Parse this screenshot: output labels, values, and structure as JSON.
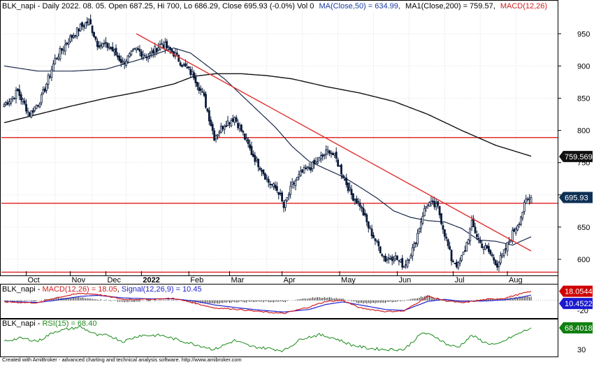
{
  "chart_title": {
    "prefix": "BLK_napi - Daily 2022. 08. 05. Open 687.25, Hi 700, Lo 686.29, Close 695.93 (-0.0%) Vol 0",
    "ma50": "MA(Close,50) = 634.99,",
    "ma200": "MA1(Close,200) = 759.57,",
    "macd": "MACD(12,26)"
  },
  "footer": "Created with AmiBroker - advanced charting and technical analysis software. http://www.amibroker.com",
  "colors": {
    "candle": "#0a1a3a",
    "ma50": "#1b2a4a",
    "ma200": "#111111",
    "trend": "#e03030",
    "macd": "#d02020",
    "signal": "#2020d0",
    "hist": "#1a1a1a",
    "rsi": "#1a8a1a",
    "price_badge": "#0d2f55",
    "ma200_badge": "#111111",
    "macd_badge": "#d00000",
    "signal_badge": "#1a1ad0",
    "rsi_badge": "#108010"
  },
  "x_axis": {
    "labels": [
      "Oct",
      "Nov",
      "Dec",
      "2022",
      "Feb",
      "Mar",
      "Apr",
      "May",
      "Jun",
      "Jul",
      "Aug"
    ]
  },
  "chart_data": [
    {
      "type": "candlestick",
      "title": "BLK_napi - Daily",
      "ylim": [
        575,
        985
      ],
      "y_ticks": [
        600,
        650,
        700,
        750,
        800,
        850,
        900,
        950
      ],
      "last": {
        "open": 687.25,
        "high": 700,
        "low": 686.29,
        "close": 695.93
      },
      "overlays": [
        {
          "name": "MA(Close,50)",
          "last": 634.99
        },
        {
          "name": "MA1(Close,200)",
          "last": 759.57
        }
      ],
      "horizontal_levels": [
        789,
        687,
        580
      ],
      "price_anchors": [
        {
          "x": 0,
          "v": 840
        },
        {
          "x": 8,
          "v": 860
        },
        {
          "x": 15,
          "v": 825
        },
        {
          "x": 22,
          "v": 850
        },
        {
          "x": 30,
          "v": 910
        },
        {
          "x": 38,
          "v": 940
        },
        {
          "x": 45,
          "v": 960
        },
        {
          "x": 50,
          "v": 970
        },
        {
          "x": 55,
          "v": 935
        },
        {
          "x": 62,
          "v": 930
        },
        {
          "x": 70,
          "v": 905
        },
        {
          "x": 78,
          "v": 925
        },
        {
          "x": 85,
          "v": 915
        },
        {
          "x": 93,
          "v": 935
        },
        {
          "x": 100,
          "v": 920
        },
        {
          "x": 106,
          "v": 900
        },
        {
          "x": 112,
          "v": 885
        },
        {
          "x": 118,
          "v": 850
        },
        {
          "x": 124,
          "v": 790
        },
        {
          "x": 130,
          "v": 810
        },
        {
          "x": 136,
          "v": 820
        },
        {
          "x": 140,
          "v": 800
        },
        {
          "x": 146,
          "v": 765
        },
        {
          "x": 152,
          "v": 740
        },
        {
          "x": 156,
          "v": 720
        },
        {
          "x": 162,
          "v": 705
        },
        {
          "x": 165,
          "v": 680
        },
        {
          "x": 170,
          "v": 715
        },
        {
          "x": 176,
          "v": 735
        },
        {
          "x": 182,
          "v": 745
        },
        {
          "x": 188,
          "v": 760
        },
        {
          "x": 192,
          "v": 770
        },
        {
          "x": 196,
          "v": 755
        },
        {
          "x": 200,
          "v": 730
        },
        {
          "x": 205,
          "v": 700
        },
        {
          "x": 210,
          "v": 685
        },
        {
          "x": 215,
          "v": 650
        },
        {
          "x": 220,
          "v": 625
        },
        {
          "x": 225,
          "v": 600
        },
        {
          "x": 230,
          "v": 605
        },
        {
          "x": 236,
          "v": 590
        },
        {
          "x": 242,
          "v": 620
        },
        {
          "x": 247,
          "v": 670
        },
        {
          "x": 250,
          "v": 688
        },
        {
          "x": 256,
          "v": 680
        },
        {
          "x": 260,
          "v": 640
        },
        {
          "x": 264,
          "v": 600
        },
        {
          "x": 268,
          "v": 590
        },
        {
          "x": 272,
          "v": 615
        },
        {
          "x": 276,
          "v": 655
        },
        {
          "x": 281,
          "v": 625
        },
        {
          "x": 286,
          "v": 612
        },
        {
          "x": 291,
          "v": 592
        },
        {
          "x": 295,
          "v": 610
        },
        {
          "x": 300,
          "v": 640
        },
        {
          "x": 304,
          "v": 660
        },
        {
          "x": 308,
          "v": 690
        },
        {
          "x": 311,
          "v": 696
        }
      ],
      "ma50_anchors": [
        {
          "x": 0,
          "v": 900
        },
        {
          "x": 20,
          "v": 892
        },
        {
          "x": 40,
          "v": 892
        },
        {
          "x": 60,
          "v": 895
        },
        {
          "x": 80,
          "v": 910
        },
        {
          "x": 100,
          "v": 928
        },
        {
          "x": 110,
          "v": 920
        },
        {
          "x": 120,
          "v": 900
        },
        {
          "x": 130,
          "v": 880
        },
        {
          "x": 140,
          "v": 855
        },
        {
          "x": 150,
          "v": 830
        },
        {
          "x": 160,
          "v": 805
        },
        {
          "x": 170,
          "v": 775
        },
        {
          "x": 180,
          "v": 752
        },
        {
          "x": 190,
          "v": 740
        },
        {
          "x": 200,
          "v": 728
        },
        {
          "x": 210,
          "v": 712
        },
        {
          "x": 220,
          "v": 695
        },
        {
          "x": 230,
          "v": 675
        },
        {
          "x": 240,
          "v": 665
        },
        {
          "x": 250,
          "v": 660
        },
        {
          "x": 260,
          "v": 658
        },
        {
          "x": 270,
          "v": 648
        },
        {
          "x": 280,
          "v": 630
        },
        {
          "x": 290,
          "v": 628
        },
        {
          "x": 300,
          "v": 622
        },
        {
          "x": 305,
          "v": 628
        },
        {
          "x": 311,
          "v": 635
        }
      ],
      "ma200_anchors": [
        {
          "x": 0,
          "v": 812
        },
        {
          "x": 20,
          "v": 825
        },
        {
          "x": 40,
          "v": 838
        },
        {
          "x": 60,
          "v": 850
        },
        {
          "x": 80,
          "v": 860
        },
        {
          "x": 100,
          "v": 872
        },
        {
          "x": 112,
          "v": 884
        },
        {
          "x": 125,
          "v": 888
        },
        {
          "x": 140,
          "v": 888
        },
        {
          "x": 155,
          "v": 885
        },
        {
          "x": 170,
          "v": 880
        },
        {
          "x": 190,
          "v": 868
        },
        {
          "x": 210,
          "v": 858
        },
        {
          "x": 230,
          "v": 845
        },
        {
          "x": 250,
          "v": 825
        },
        {
          "x": 270,
          "v": 800
        },
        {
          "x": 290,
          "v": 777
        },
        {
          "x": 311,
          "v": 760
        }
      ],
      "trendline": {
        "from": {
          "x": 78,
          "v": 950
        },
        "to": {
          "x": 311,
          "v": 613
        }
      }
    },
    {
      "type": "line",
      "title": "BLK_napi - MACD(12,26) = 18.05, Signal(12,26,9) = 10.45",
      "ylim": [
        -35,
        30
      ],
      "y_ticks": [
        -20
      ],
      "series": [
        {
          "name": "MACD(12,26)",
          "last": 18.05,
          "anchors": [
            {
              "x": 0,
              "v": -3
            },
            {
              "x": 20,
              "v": -5
            },
            {
              "x": 30,
              "v": 5
            },
            {
              "x": 45,
              "v": 14
            },
            {
              "x": 55,
              "v": 12
            },
            {
              "x": 70,
              "v": 2
            },
            {
              "x": 85,
              "v": 2
            },
            {
              "x": 100,
              "v": 4
            },
            {
              "x": 112,
              "v": -5
            },
            {
              "x": 124,
              "v": -15
            },
            {
              "x": 136,
              "v": -17
            },
            {
              "x": 150,
              "v": -22
            },
            {
              "x": 165,
              "v": -26
            },
            {
              "x": 180,
              "v": -13
            },
            {
              "x": 190,
              "v": -2
            },
            {
              "x": 200,
              "v": 0
            },
            {
              "x": 210,
              "v": -15
            },
            {
              "x": 225,
              "v": -22
            },
            {
              "x": 236,
              "v": -21
            },
            {
              "x": 250,
              "v": 8
            },
            {
              "x": 260,
              "v": 0
            },
            {
              "x": 270,
              "v": -5
            },
            {
              "x": 285,
              "v": 2
            },
            {
              "x": 295,
              "v": 4
            },
            {
              "x": 305,
              "v": 13
            },
            {
              "x": 311,
              "v": 18.05
            }
          ]
        },
        {
          "name": "Signal(12,26,9)",
          "last": 10.45,
          "anchors": [
            {
              "x": 0,
              "v": -2
            },
            {
              "x": 20,
              "v": -4
            },
            {
              "x": 30,
              "v": 0
            },
            {
              "x": 45,
              "v": 8
            },
            {
              "x": 55,
              "v": 10
            },
            {
              "x": 70,
              "v": 5
            },
            {
              "x": 85,
              "v": 3
            },
            {
              "x": 100,
              "v": 3
            },
            {
              "x": 112,
              "v": -1
            },
            {
              "x": 124,
              "v": -9
            },
            {
              "x": 136,
              "v": -14
            },
            {
              "x": 150,
              "v": -19
            },
            {
              "x": 165,
              "v": -23
            },
            {
              "x": 180,
              "v": -18
            },
            {
              "x": 190,
              "v": -8
            },
            {
              "x": 200,
              "v": -3
            },
            {
              "x": 210,
              "v": -9
            },
            {
              "x": 225,
              "v": -18
            },
            {
              "x": 236,
              "v": -20
            },
            {
              "x": 250,
              "v": -2
            },
            {
              "x": 260,
              "v": 2
            },
            {
              "x": 270,
              "v": -2
            },
            {
              "x": 285,
              "v": -1
            },
            {
              "x": 295,
              "v": 1
            },
            {
              "x": 305,
              "v": 6
            },
            {
              "x": 311,
              "v": 10.45
            }
          ]
        }
      ]
    },
    {
      "type": "line",
      "title": "BLK_napi - RSI(15) = 68.40",
      "ylim": [
        20,
        82
      ],
      "y_ticks": [
        30
      ],
      "series": [
        {
          "name": "RSI(15)",
          "last": 68.4,
          "anchors": [
            {
              "x": 0,
              "v": 45
            },
            {
              "x": 10,
              "v": 50
            },
            {
              "x": 20,
              "v": 45
            },
            {
              "x": 30,
              "v": 62
            },
            {
              "x": 45,
              "v": 70
            },
            {
              "x": 55,
              "v": 55
            },
            {
              "x": 62,
              "v": 55
            },
            {
              "x": 70,
              "v": 44
            },
            {
              "x": 80,
              "v": 55
            },
            {
              "x": 93,
              "v": 55
            },
            {
              "x": 106,
              "v": 44
            },
            {
              "x": 118,
              "v": 35
            },
            {
              "x": 124,
              "v": 30
            },
            {
              "x": 136,
              "v": 46
            },
            {
              "x": 146,
              "v": 35
            },
            {
              "x": 156,
              "v": 32
            },
            {
              "x": 165,
              "v": 28
            },
            {
              "x": 176,
              "v": 50
            },
            {
              "x": 186,
              "v": 56
            },
            {
              "x": 195,
              "v": 50
            },
            {
              "x": 205,
              "v": 38
            },
            {
              "x": 215,
              "v": 32
            },
            {
              "x": 225,
              "v": 30
            },
            {
              "x": 236,
              "v": 30
            },
            {
              "x": 247,
              "v": 60
            },
            {
              "x": 255,
              "v": 52
            },
            {
              "x": 262,
              "v": 38
            },
            {
              "x": 268,
              "v": 34
            },
            {
              "x": 276,
              "v": 55
            },
            {
              "x": 284,
              "v": 42
            },
            {
              "x": 291,
              "v": 38
            },
            {
              "x": 298,
              "v": 50
            },
            {
              "x": 305,
              "v": 60
            },
            {
              "x": 311,
              "v": 68.4
            }
          ]
        }
      ]
    }
  ],
  "badges": {
    "ma200": "759.569",
    "price": "695.93",
    "macd": "18.0544",
    "signal": "10.4522",
    "rsi": "68.4018"
  }
}
